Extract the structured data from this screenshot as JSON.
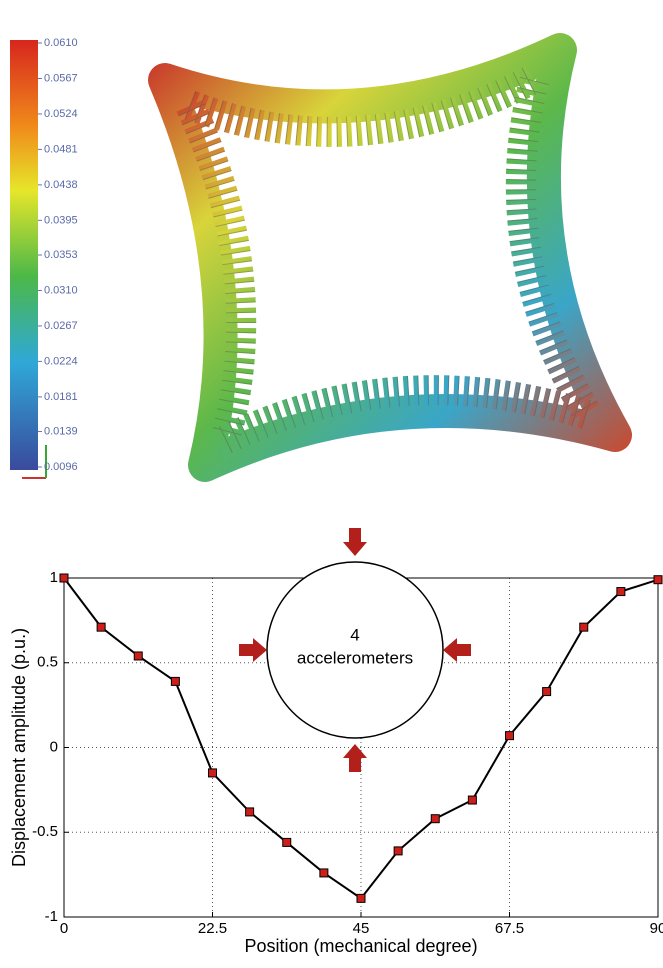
{
  "colorbar": {
    "lim": [
      0.0096,
      0.061
    ],
    "ticks": [
      {
        "value": 0.061,
        "label": "0.0610"
      },
      {
        "value": 0.0567,
        "label": "0.0567"
      },
      {
        "value": 0.0524,
        "label": "0.0524"
      },
      {
        "value": 0.0481,
        "label": "0.0481"
      },
      {
        "value": 0.0438,
        "label": "0.0438"
      },
      {
        "value": 0.0395,
        "label": "0.0395"
      },
      {
        "value": 0.0353,
        "label": "0.0353"
      },
      {
        "value": 0.031,
        "label": "0.0310"
      },
      {
        "value": 0.0267,
        "label": "0.0267"
      },
      {
        "value": 0.0224,
        "label": "0.0224"
      },
      {
        "value": 0.0181,
        "label": "0.0181"
      },
      {
        "value": 0.0139,
        "label": "0.0139"
      },
      {
        "value": 0.0096,
        "label": "0.0096"
      }
    ]
  },
  "chart_data": {
    "type": "line",
    "x_label": "Position (mechanical degree)",
    "y_label": "Displacement amplitude (p.u.)",
    "annotation": [
      "4",
      "accelerometers"
    ],
    "x": [
      0,
      5.625,
      11.25,
      16.875,
      22.5,
      28.125,
      33.75,
      39.375,
      45,
      50.625,
      56.25,
      61.875,
      67.5,
      73.125,
      78.75,
      84.375,
      90
    ],
    "values": [
      1.0,
      0.71,
      0.54,
      0.39,
      -0.15,
      -0.38,
      -0.56,
      -0.74,
      -0.89,
      -0.61,
      -0.42,
      -0.31,
      0.07,
      0.33,
      0.71,
      0.92,
      0.99
    ],
    "color": "#000000",
    "marker_color": "#cc1f1a",
    "xlim": [
      0,
      90
    ],
    "xticks": [
      0,
      22.5,
      45,
      67.5,
      90
    ],
    "ylim": [
      -1,
      1
    ],
    "yticks": [
      -1,
      -0.5,
      0,
      0.5,
      1
    ],
    "grid": true
  }
}
